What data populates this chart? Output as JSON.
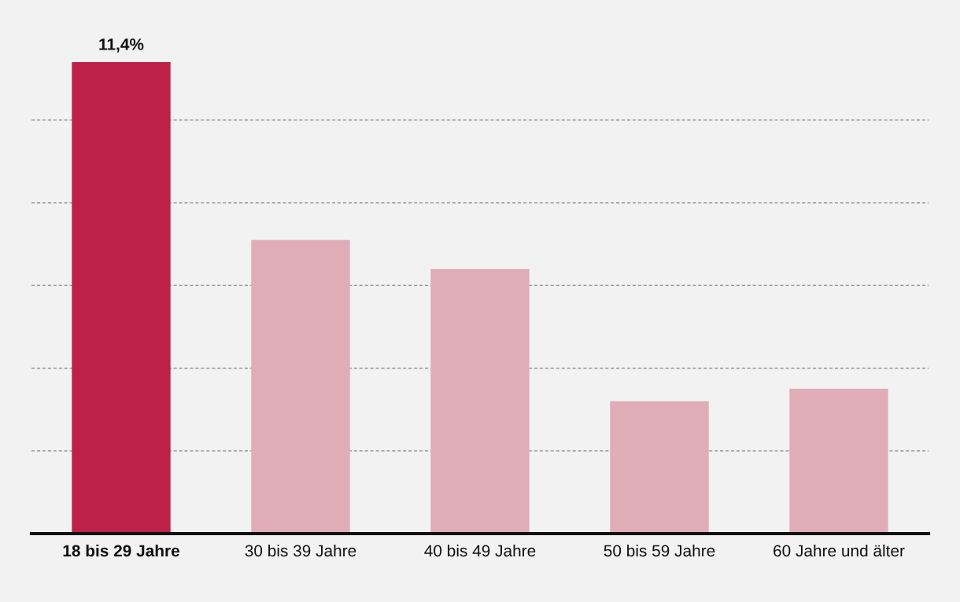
{
  "chart_data": {
    "type": "bar",
    "categories": [
      "18 bis 29 Jahre",
      "30 bis 39 Jahre",
      "40 bis 49 Jahre",
      "50 bis 59 Jahre",
      "60 Jahre und älter"
    ],
    "values": [
      11.4,
      7.1,
      6.4,
      3.2,
      3.5
    ],
    "colors": [
      "#be2148",
      "#e0acb8",
      "#e0acb8",
      "#e0acb8",
      "#e0acb8"
    ],
    "value_labels": [
      "11,4%",
      null,
      null,
      null,
      null
    ],
    "yticks": [
      {
        "value": 2,
        "label": null
      },
      {
        "value": 4,
        "label": null
      },
      {
        "value": 6,
        "label": null
      },
      {
        "value": 8,
        "label": null
      },
      {
        "value": 10,
        "label": null
      }
    ],
    "tick_labels": "x",
    "grid": "y"
  }
}
